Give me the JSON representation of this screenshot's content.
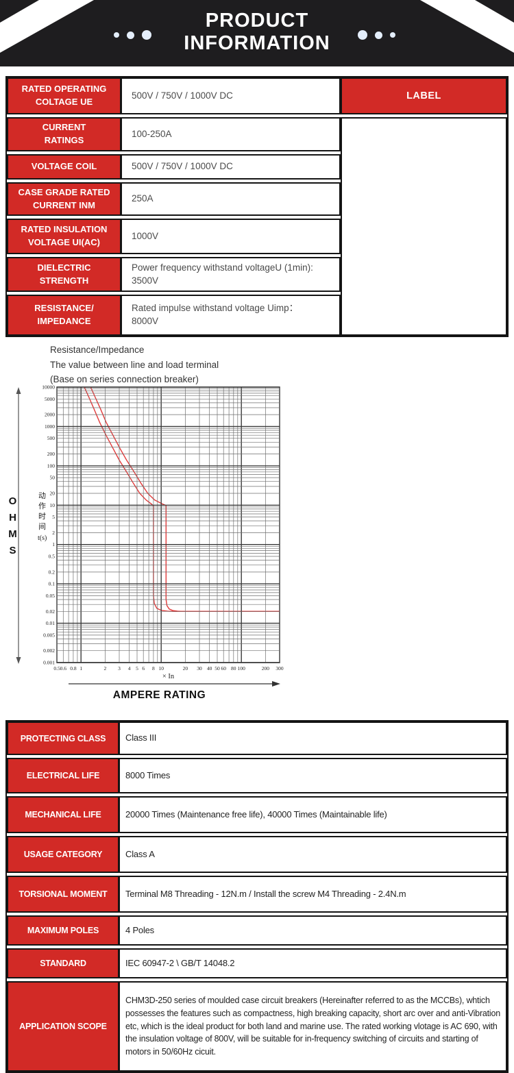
{
  "banner": {
    "title_line1": "PRODUCT",
    "title_line2": "INFORMATION"
  },
  "colors": {
    "accent_red": "#d22a26",
    "banner_black": "#1e1d1f",
    "curve_red": "#e23b3b"
  },
  "spec_table": {
    "label_header": "LABEL",
    "rows": [
      {
        "label": "RATED OPERATING\nCOLTAGE UE",
        "value": "500V / 750V / 1000V DC"
      },
      {
        "label": "CURRENT\nRATINGS",
        "value": "100-250A"
      },
      {
        "label": "VOLTAGE COIL",
        "value": "500V / 750V / 1000V DC"
      },
      {
        "label": "CASE GRADE RATED\nCURRENT INM",
        "value": "250A"
      },
      {
        "label": "RATED INSULATION\nVOLTAGE UI(AC)",
        "value": "1000V"
      },
      {
        "label": "DIELECTRIC\nSTRENGTH",
        "value": "Power frequency withstand voltageU (1min):\n3500V"
      },
      {
        "label": "RESISTANCE/\nIMPEDANCE",
        "value": "Rated impulse withstand voltage Uimp：\n8000V"
      }
    ]
  },
  "chart_data": {
    "type": "line",
    "heading_lines": [
      "Resistance/Impedance",
      "The value between line and load terminal",
      "(Base on series connection breaker)"
    ],
    "left_label": "OHMS",
    "bottom_label": "AMPERE RATING",
    "ylabel_cn": "动作时间",
    "ylabel_unit": "t(s)",
    "x_unit": "× In",
    "x_scale": "log",
    "y_scale": "log",
    "xlim": [
      0.5,
      300
    ],
    "ylim": [
      0.001,
      10000
    ],
    "x_ticks": [
      "0.5",
      "0.6",
      "0.8",
      "1",
      "2",
      "3",
      "4",
      "5",
      "6",
      "8",
      "10",
      "20",
      "30",
      "40",
      "50",
      "60",
      "80",
      "100",
      "200",
      "300"
    ],
    "y_ticks": [
      "10000",
      "5000",
      "2000",
      "1000",
      "500",
      "200",
      "100",
      "50",
      "20",
      "10",
      "5",
      "2",
      "1",
      "0.5",
      "0.2",
      "0.1",
      "0.05",
      "0.02",
      "0.01",
      "0.005",
      "0.002",
      "0.001"
    ],
    "grid": "log-log full minor grid",
    "series": [
      {
        "name": "lower-limit-trip-curve",
        "color": "#e23b3b",
        "points": [
          [
            1.1,
            10000
          ],
          [
            1.25,
            5600
          ],
          [
            1.45,
            2800
          ],
          [
            1.7,
            1300
          ],
          [
            2.05,
            600
          ],
          [
            2.5,
            280
          ],
          [
            3.0,
            140
          ],
          [
            3.7,
            70
          ],
          [
            4.5,
            36
          ],
          [
            5.4,
            20
          ],
          [
            6.5,
            13.5
          ],
          [
            7.6,
            10.6
          ],
          [
            8,
            9.5
          ],
          [
            8,
            0.05
          ],
          [
            8.2,
            0.032
          ],
          [
            8.8,
            0.024
          ],
          [
            10,
            0.0212
          ],
          [
            12,
            0.0203
          ],
          [
            14,
            0.02
          ],
          [
            300,
            0.02
          ]
        ]
      },
      {
        "name": "upper-limit-trip-curve",
        "color": "#e23b3b",
        "points": [
          [
            1.32,
            10000
          ],
          [
            1.5,
            5600
          ],
          [
            1.75,
            2800
          ],
          [
            2.05,
            1300
          ],
          [
            2.5,
            600
          ],
          [
            3.05,
            280
          ],
          [
            3.7,
            140
          ],
          [
            4.6,
            70
          ],
          [
            5.6,
            36
          ],
          [
            6.8,
            20
          ],
          [
            8.3,
            13.5
          ],
          [
            10.3,
            10.8
          ],
          [
            11.5,
            9.8
          ],
          [
            11.5,
            0.04
          ],
          [
            11.8,
            0.028
          ],
          [
            12.6,
            0.023
          ],
          [
            14,
            0.021
          ],
          [
            16,
            0.0202
          ],
          [
            18,
            0.02
          ],
          [
            300,
            0.02
          ]
        ]
      }
    ]
  },
  "bottom_table": {
    "rows": [
      {
        "label": "PROTECTING CLASS",
        "value": "Class III"
      },
      {
        "label": "ELECTRICAL LIFE",
        "value": "8000 Times"
      },
      {
        "label": "MECHANICAL LIFE",
        "value": "20000 Times (Maintenance free life), 40000 Times (Maintainable life)"
      },
      {
        "label": "USAGE CATEGORY",
        "value": "Class A"
      },
      {
        "label": "TORSIONAL MOMENT",
        "value": "Terminal M8 Threading - 12N.m / Install the screw M4 Threading - 2.4N.m"
      },
      {
        "label": "MAXIMUM POLES",
        "value": "4 Poles"
      },
      {
        "label": "STANDARD",
        "value": "IEC 60947-2 \\ GB/T 14048.2"
      },
      {
        "label": "APPLICATION SCOPE",
        "value": "CHM3D-250 series of moulded case circuit breakers (Hereinafter referred to as the MCCBs), whtich possesses the features such as compactness, high breaking capacity, short arc over and anti-Vibration etc, which is the ideal product for both land and marine use. The rated working vlotage is AC 690, with the insulation voltage of 800V, will be suitable for in-frequency switching of circuits and starting of motors in 50/60Hz cicuit."
      }
    ]
  }
}
